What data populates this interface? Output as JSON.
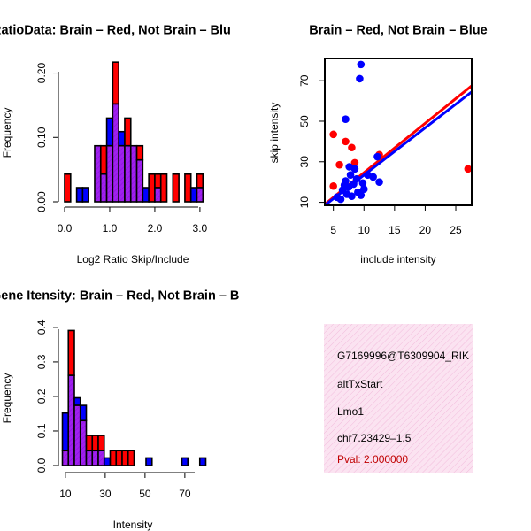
{
  "colors": {
    "brain": "#ff0000",
    "not_brain": "#0000ff",
    "overlap": "#a020f0",
    "panel_bg": "#fbe3f1",
    "panel_hatch": "#f2bcdc",
    "pval": "#c00000"
  },
  "chart_data": [
    {
      "id": "ratio-hist",
      "type": "bar",
      "title": "RatioData: Brain – Red, Not Brain – Blu",
      "xlabel": "Log2 Ratio Skip/Include",
      "ylabel": "Frequency",
      "xlim": [
        0,
        3.1
      ],
      "ylim": [
        0,
        0.22
      ],
      "xticks": [
        "0.0",
        "1.0",
        "2.0",
        "3.0"
      ],
      "xtick_values": [
        0,
        1,
        2,
        3
      ],
      "yticks": [
        "0.00",
        "0.10",
        "0.20"
      ],
      "ytick_values": [
        0,
        0.1,
        0.2
      ],
      "bin_width": 0.1333,
      "bin_starts": [
        0,
        0.1333,
        0.2667,
        0.4,
        0.5333,
        0.6667,
        0.8,
        0.9333,
        1.0667,
        1.2,
        1.3333,
        1.4667,
        1.6,
        1.7333,
        1.8667,
        2.0,
        2.1333,
        2.2667,
        2.4,
        2.5333,
        2.6667,
        2.8,
        2.9333
      ],
      "series": [
        {
          "name": "Brain",
          "values": [
            0.043,
            0,
            0,
            0,
            0,
            0.087,
            0.087,
            0.087,
            0.217,
            0.087,
            0.13,
            0.087,
            0.087,
            0,
            0.043,
            0.043,
            0.043,
            0,
            0.043,
            0,
            0.043,
            0,
            0.043
          ]
        },
        {
          "name": "Not Brain",
          "values": [
            0,
            0,
            0.022,
            0.022,
            0,
            0.087,
            0.043,
            0.13,
            0.152,
            0.109,
            0.087,
            0.087,
            0.065,
            0.022,
            0,
            0.022,
            0,
            0,
            0,
            0,
            0,
            0.022,
            0.022
          ]
        }
      ]
    },
    {
      "id": "scatter",
      "type": "scatter",
      "title": "Brain – Red, Not Brain – Blue",
      "xlabel": "include intensity",
      "ylabel": "skip intensity",
      "xlim": [
        3.6,
        27.6
      ],
      "ylim": [
        8.5,
        81
      ],
      "xticks": [
        "5",
        "10",
        "15",
        "20",
        "25"
      ],
      "xtick_values": [
        5,
        10,
        15,
        20,
        25
      ],
      "yticks": [
        "10",
        "30",
        "50",
        "70"
      ],
      "ytick_values": [
        10,
        30,
        50,
        70
      ],
      "series": [
        {
          "name": "Brain",
          "points": [
            [
              5,
              43.5
            ],
            [
              5,
              18
            ],
            [
              6,
              28.5
            ],
            [
              7,
              40
            ],
            [
              8,
              37
            ],
            [
              8.5,
              29.5
            ],
            [
              12.5,
              33.5
            ],
            [
              27,
              26.5
            ]
          ],
          "fit": [
            [
              3.6,
              9
            ],
            [
              27.6,
              67.5
            ]
          ]
        },
        {
          "name": "Not Brain",
          "points": [
            [
              9.5,
              78
            ],
            [
              9.3,
              71
            ],
            [
              7,
              51
            ],
            [
              12.2,
              32.5
            ],
            [
              12.5,
              20
            ],
            [
              9,
              15
            ],
            [
              8,
              13
            ],
            [
              6.2,
              11.5
            ],
            [
              5.6,
              12.5
            ],
            [
              7.2,
              14
            ],
            [
              7.5,
              17.5
            ],
            [
              8.3,
              19
            ],
            [
              6.8,
              18.5
            ],
            [
              7.8,
              23.5
            ],
            [
              8.5,
              26.5
            ],
            [
              7.6,
              27.5
            ],
            [
              8.8,
              21.5
            ],
            [
              9.5,
              13.5
            ],
            [
              10,
              16.5
            ],
            [
              11.5,
              22.5
            ],
            [
              10.6,
              23.5
            ],
            [
              6.5,
              16
            ],
            [
              7,
              20.5
            ],
            [
              9.8,
              19.5
            ]
          ],
          "fit": [
            [
              3.6,
              8.5
            ],
            [
              27.6,
              64.5
            ]
          ]
        }
      ]
    },
    {
      "id": "intensity-hist",
      "type": "bar",
      "title": "Gene Itensity: Brain – Red, Not Brain – B",
      "xlabel": "Intensity",
      "ylabel": "Frequency",
      "xlim": [
        8.5,
        80.5
      ],
      "ylim": [
        0,
        0.41
      ],
      "xticks": [
        "10",
        "30",
        "50",
        "70"
      ],
      "xtick_values": [
        10,
        30,
        50,
        70
      ],
      "yticks": [
        "0.0",
        "0.1",
        "0.2",
        "0.3",
        "0.4"
      ],
      "ytick_values": [
        0,
        0.1,
        0.2,
        0.3,
        0.4
      ],
      "bin_width": 3.0,
      "bin_starts": [
        8.5,
        11.5,
        14.5,
        17.5,
        20.5,
        23.5,
        26.5,
        29.5,
        32.5,
        35.5,
        38.5,
        41.5,
        44.5,
        47.5,
        50.5,
        53.5,
        56.5,
        59.5,
        62.5,
        65.5,
        68.5,
        71.5,
        74.5,
        77.5
      ],
      "series": [
        {
          "name": "Brain",
          "values": [
            0.043,
            0.391,
            0.174,
            0.13,
            0.087,
            0.087,
            0.087,
            0,
            0.043,
            0.043,
            0.043,
            0.043,
            0,
            0,
            0,
            0,
            0,
            0,
            0,
            0,
            0,
            0,
            0,
            0
          ]
        },
        {
          "name": "Not Brain",
          "values": [
            0.152,
            0.261,
            0.196,
            0.174,
            0.043,
            0.043,
            0.043,
            0.022,
            0,
            0,
            0,
            0,
            0,
            0,
            0.022,
            0,
            0,
            0,
            0,
            0,
            0.022,
            0,
            0,
            0.022
          ]
        }
      ]
    }
  ],
  "info_panel": {
    "lines": [
      "G7169996@T6309904_RIK",
      "altTxStart",
      "Lmo1",
      "chr7.23429–1.5"
    ],
    "pval": "Pval: 2.000000"
  }
}
